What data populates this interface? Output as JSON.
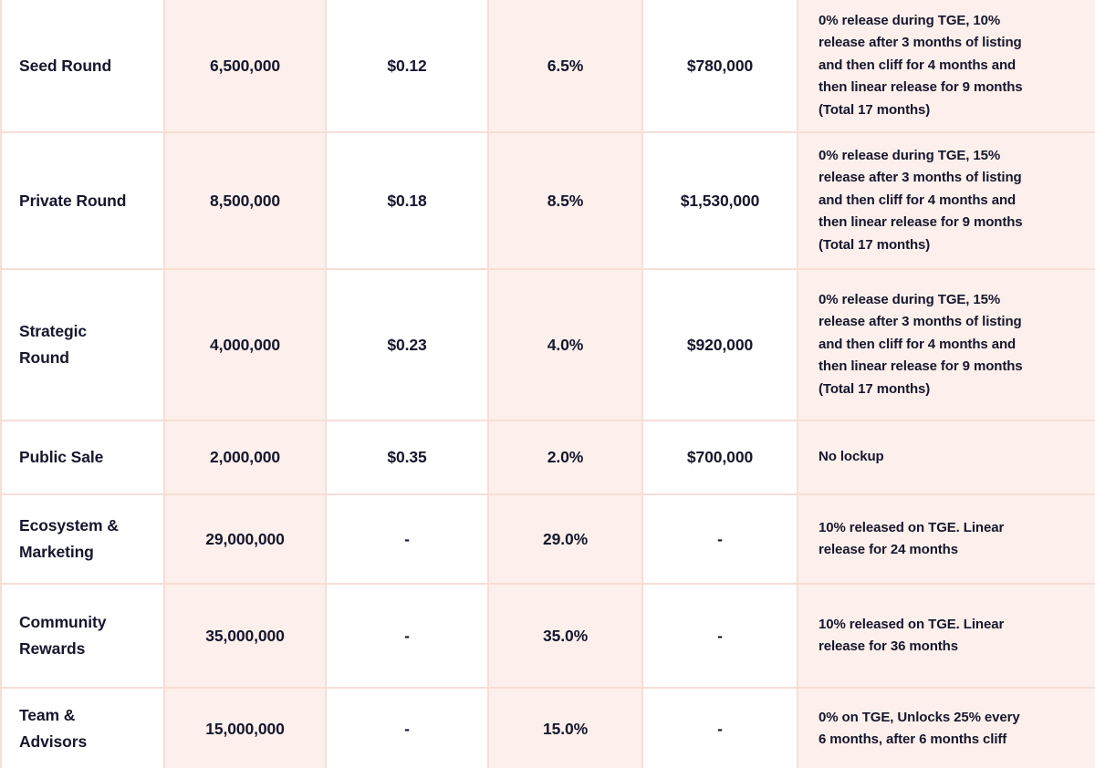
{
  "colors": {
    "cell_pink": "#fdf0ec",
    "border_pink": "#f8ddd5",
    "text_dark": "#16162d",
    "page_bg": "#ffffff"
  },
  "table": {
    "rows": [
      {
        "name": "Seed Round",
        "tokens": "6,500,000",
        "price": "$0.12",
        "percent": "6.5%",
        "raised": "$780,000",
        "vesting": "0% release during TGE, 10%\nrelease after 3 months of listing\nand then cliff for 4 months and\nthen linear release for 9 months\n(Total 17 months)"
      },
      {
        "name": "Private Round",
        "tokens": "8,500,000",
        "price": "$0.18",
        "percent": "8.5%",
        "raised": "$1,530,000",
        "vesting": "0% release during TGE, 15%\nrelease after 3 months of listing\nand then cliff for 4 months and\nthen linear release for 9 months\n(Total 17 months)"
      },
      {
        "name": "Strategic\nRound",
        "tokens": "4,000,000",
        "price": "$0.23",
        "percent": "4.0%",
        "raised": "$920,000",
        "vesting": "0% release during TGE, 15%\nrelease after 3 months of listing\nand then cliff for 4 months and\nthen linear release for 9 months\n(Total 17 months)"
      },
      {
        "name": "Public Sale",
        "tokens": "2,000,000",
        "price": "$0.35",
        "percent": "2.0%",
        "raised": "$700,000",
        "vesting": "No lockup"
      },
      {
        "name": "Ecosystem &\nMarketing",
        "tokens": "29,000,000",
        "price": "-",
        "percent": "29.0%",
        "raised": "-",
        "vesting": "10% released on TGE. Linear\nrelease for 24 months"
      },
      {
        "name": "Community\nRewards",
        "tokens": "35,000,000",
        "price": "-",
        "percent": "35.0%",
        "raised": "-",
        "vesting": "10% released on TGE. Linear\nrelease for 36 months"
      },
      {
        "name": "Team &\nAdvisors",
        "tokens": "15,000,000",
        "price": "-",
        "percent": "15.0%",
        "raised": "-",
        "vesting": "0% on TGE, Unlocks 25% every\n6 months, after 6 months cliff"
      }
    ]
  }
}
